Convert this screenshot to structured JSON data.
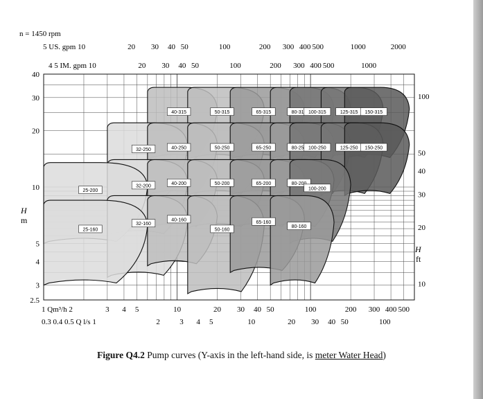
{
  "header": {
    "speed": "n = 1450 rpm",
    "us_gpm_label": "5 US. gpm 10",
    "im_gpm_label": "4 5 IM. gpm 10"
  },
  "top_axes": {
    "us_gpm_ticks": [
      "20",
      "30",
      "40",
      "50",
      "100",
      "200",
      "300",
      "400",
      "500",
      "1000",
      "2000"
    ],
    "im_gpm_ticks": [
      "20",
      "30",
      "40",
      "50",
      "100",
      "200",
      "300",
      "400",
      "500",
      "1000"
    ]
  },
  "bottom_axes": {
    "flow_m3h_label": "1 Qm³/h 2",
    "flow_m3h_ticks": [
      "3",
      "4",
      "5",
      "10",
      "20",
      "30",
      "40",
      "50",
      "100",
      "200",
      "300",
      "400",
      "500"
    ],
    "flow_ls_label": "0.3 0.4 0.5 Q l/s 1",
    "flow_ls_ticks": [
      "2",
      "3",
      "4",
      "5",
      "10",
      "20",
      "30",
      "40",
      "50",
      "100"
    ]
  },
  "left_axis": {
    "label_top": "H",
    "label_bottom": "m",
    "ticks": [
      "40",
      "30",
      "20",
      "10",
      "5",
      "4",
      "3",
      "2.5"
    ]
  },
  "right_axis": {
    "label_top": "H",
    "label_bottom": "ft",
    "ticks": [
      "100",
      "50",
      "40",
      "30",
      "20",
      "10"
    ]
  },
  "caption": {
    "bold": "Figure Q4.2",
    "text": " Pump curves (Y-axis in the left-hand side, is ",
    "underlined": "meter Water Head",
    "end": ")"
  },
  "chart_data": {
    "type": "area",
    "x_scale": "log",
    "y_scale": "log",
    "xlabel": "Q m³/h",
    "ylabel": "H m",
    "xlim": [
      1,
      600
    ],
    "ylim": [
      2.5,
      40
    ],
    "grid": true,
    "colors": {
      "shade1": "#dcdcdc",
      "shade2": "#bdbdbd",
      "shade3": "#9a9a9a",
      "shade4": "#767676",
      "shade5": "#595959"
    },
    "series": [
      {
        "name": "25-160",
        "q_min": 1.0,
        "q_max": 6.0,
        "h_min": 3.0,
        "h_max": 8.5,
        "shade": 1
      },
      {
        "name": "25-200",
        "q_min": 1.0,
        "q_max": 6.0,
        "h_min": 5.0,
        "h_max": 13.5,
        "shade": 1
      },
      {
        "name": "32-160",
        "q_min": 3.0,
        "q_max": 12.0,
        "h_min": 3.3,
        "h_max": 9.0,
        "shade": 1
      },
      {
        "name": "32-200",
        "q_min": 3.0,
        "q_max": 12.0,
        "h_min": 5.5,
        "h_max": 14.0,
        "shade": 1
      },
      {
        "name": "32-250",
        "q_min": 3.0,
        "q_max": 12.0,
        "h_min": 8.5,
        "h_max": 22.0,
        "shade": 1
      },
      {
        "name": "40-160",
        "q_min": 6.0,
        "q_max": 20.0,
        "h_min": 3.8,
        "h_max": 9.0,
        "shade": 2
      },
      {
        "name": "40-200",
        "q_min": 6.0,
        "q_max": 20.0,
        "h_min": 6.0,
        "h_max": 14.0,
        "shade": 2
      },
      {
        "name": "40-250",
        "q_min": 6.0,
        "q_max": 20.0,
        "h_min": 9.0,
        "h_max": 22.0,
        "shade": 2
      },
      {
        "name": "40-315",
        "q_min": 6.0,
        "q_max": 20.0,
        "h_min": 14.0,
        "h_max": 34.0,
        "shade": 2
      },
      {
        "name": "50-160",
        "q_min": 12.0,
        "q_max": 45.0,
        "h_min": 2.7,
        "h_max": 9.0,
        "shade": 2
      },
      {
        "name": "50-200",
        "q_min": 12.0,
        "q_max": 45.0,
        "h_min": 6.0,
        "h_max": 14.0,
        "shade": 2
      },
      {
        "name": "50-250",
        "q_min": 12.0,
        "q_max": 45.0,
        "h_min": 9.0,
        "h_max": 22.0,
        "shade": 2
      },
      {
        "name": "50-315",
        "q_min": 12.0,
        "q_max": 45.0,
        "h_min": 14.0,
        "h_max": 34.0,
        "shade": 2
      },
      {
        "name": "65-160",
        "q_min": 25.0,
        "q_max": 90.0,
        "h_min": 3.5,
        "h_max": 9.0,
        "shade": 3
      },
      {
        "name": "65-200",
        "q_min": 25.0,
        "q_max": 90.0,
        "h_min": 6.0,
        "h_max": 14.0,
        "shade": 3
      },
      {
        "name": "65-250",
        "q_min": 25.0,
        "q_max": 90.0,
        "h_min": 9.0,
        "h_max": 22.0,
        "shade": 3
      },
      {
        "name": "65-315",
        "q_min": 25.0,
        "q_max": 90.0,
        "h_min": 14.0,
        "h_max": 34.0,
        "shade": 3
      },
      {
        "name": "80-160",
        "q_min": 50.0,
        "q_max": 150.0,
        "h_min": 3.0,
        "h_max": 9.0,
        "shade": 3
      },
      {
        "name": "80-200",
        "q_min": 50.0,
        "q_max": 150.0,
        "h_min": 6.0,
        "h_max": 14.0,
        "shade": 3
      },
      {
        "name": "80-250",
        "q_min": 50.0,
        "q_max": 150.0,
        "h_min": 9.0,
        "h_max": 22.0,
        "shade": 3
      },
      {
        "name": "80-315",
        "q_min": 50.0,
        "q_max": 150.0,
        "h_min": 14.0,
        "h_max": 34.0,
        "shade": 3
      },
      {
        "name": "100-200",
        "q_min": 70.0,
        "q_max": 200.0,
        "h_min": 5.0,
        "h_max": 14.0,
        "shade": 4
      },
      {
        "name": "100-250",
        "q_min": 70.0,
        "q_max": 200.0,
        "h_min": 9.0,
        "h_max": 22.0,
        "shade": 4
      },
      {
        "name": "100-315",
        "q_min": 70.0,
        "q_max": 200.0,
        "h_min": 14.0,
        "h_max": 34.0,
        "shade": 4
      },
      {
        "name": "125-250",
        "q_min": 120.0,
        "q_max": 350.0,
        "h_min": 9.0,
        "h_max": 22.0,
        "shade": 4
      },
      {
        "name": "125-315",
        "q_min": 120.0,
        "q_max": 350.0,
        "h_min": 14.0,
        "h_max": 34.0,
        "shade": 4
      },
      {
        "name": "150-250",
        "q_min": 180.0,
        "q_max": 550.0,
        "h_min": 9.0,
        "h_max": 22.0,
        "shade": 5
      },
      {
        "name": "150-315",
        "q_min": 180.0,
        "q_max": 550.0,
        "h_min": 14.0,
        "h_max": 34.0,
        "shade": 5
      }
    ]
  }
}
